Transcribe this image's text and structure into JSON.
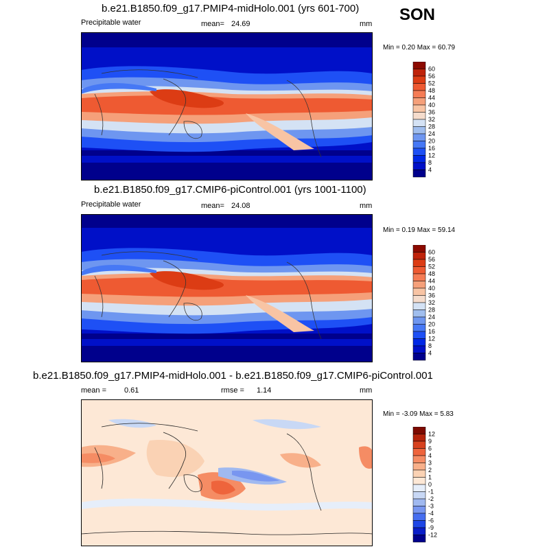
{
  "season": "SON",
  "colors": {
    "abs": [
      "#00008c",
      "#0010c8",
      "#0028e6",
      "#1e50f5",
      "#4678f5",
      "#6e96f0",
      "#a0beee",
      "#d4e2f4",
      "#f5dccc",
      "#f8c4a4",
      "#f5a07a",
      "#f57c55",
      "#ee5a32",
      "#dc3c14",
      "#bf230a",
      "#8c0a00"
    ],
    "diff": [
      "#00008c",
      "#0a1ec8",
      "#1e46e6",
      "#466ef0",
      "#7896f0",
      "#a0b9f0",
      "#c8d8f5",
      "#e6eefa",
      "#fde8d6",
      "#fad2b4",
      "#f8b08a",
      "#f58c64",
      "#ee643c",
      "#d7411e",
      "#b4230a",
      "#7d0a00"
    ]
  },
  "panels": [
    {
      "title": "b.e21.B1850.f09_g17.PMIP4-midHolo.001 (yrs 601-700)",
      "variable": "Precipitable water",
      "mean_label": "mean=",
      "mean": "24.69",
      "units": "mm",
      "minmax": "Min =   0.20 Max =  60.79"
    },
    {
      "title": "b.e21.B1850.f09_g17.CMIP6-piControl.001 (yrs 1001-1100)",
      "variable": "Precipitable water",
      "mean_label": "mean=",
      "mean": "24.08",
      "units": "mm",
      "minmax": "Min =   0.19 Max =  59.14"
    },
    {
      "title": "b.e21.B1850.f09_g17.PMIP4-midHolo.001 - b.e21.B1850.f09_g17.CMIP6-piControl.001",
      "mean_label": "mean =",
      "mean": "0.61",
      "rmse_label": "rmse =",
      "rmse": "1.14",
      "units": "mm",
      "minmax": "Min =  -3.09 Max =   5.83"
    }
  ],
  "chart_data": [
    {
      "type": "heatmap",
      "title": "b.e21.B1850.f09_g17.PMIP4-midHolo.001 (yrs 601-700)",
      "variable": "Precipitable water",
      "units": "mm",
      "mean": 24.69,
      "min": 0.2,
      "max": 60.79,
      "colorbar_levels": [
        4,
        8,
        12,
        16,
        20,
        24,
        28,
        32,
        36,
        40,
        44,
        48,
        52,
        56,
        60
      ]
    },
    {
      "type": "heatmap",
      "title": "b.e21.B1850.f09_g17.CMIP6-piControl.001 (yrs 1001-1100)",
      "variable": "Precipitable water",
      "units": "mm",
      "mean": 24.08,
      "min": 0.19,
      "max": 59.14,
      "colorbar_levels": [
        4,
        8,
        12,
        16,
        20,
        24,
        28,
        32,
        36,
        40,
        44,
        48,
        52,
        56,
        60
      ]
    },
    {
      "type": "heatmap",
      "title": "b.e21.B1850.f09_g17.PMIP4-midHolo.001 - b.e21.B1850.f09_g17.CMIP6-piControl.001",
      "units": "mm",
      "mean": 0.61,
      "rmse": 1.14,
      "min": -3.09,
      "max": 5.83,
      "colorbar_levels": [
        -12,
        -9,
        -6,
        -4,
        -3,
        -2,
        -1,
        0,
        1,
        2,
        3,
        4,
        6,
        9,
        12
      ]
    }
  ]
}
